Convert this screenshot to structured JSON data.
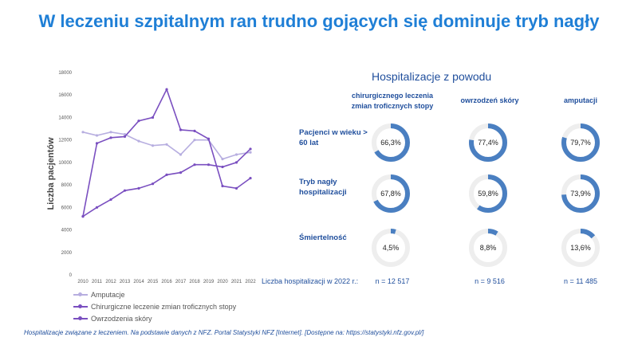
{
  "title": "W leczeniu szpitalnym ran trudno gojących się dominuje tryb nagły",
  "chart_data": {
    "type": "line",
    "ylabel": "Liczba pacjentów",
    "xlabel": "",
    "ylim": [
      0,
      18000
    ],
    "yticks": [
      0,
      2000,
      4000,
      6000,
      8000,
      10000,
      12000,
      14000,
      16000,
      18000
    ],
    "x": [
      "2010",
      "2011",
      "2012",
      "2013",
      "2014",
      "2015",
      "2016",
      "2017",
      "2018",
      "2019",
      "2020",
      "2021",
      "2022"
    ],
    "series": [
      {
        "name": "Amputacje",
        "color": "#b7aee0",
        "values": [
          12700,
          12400,
          12700,
          12500,
          11900,
          11500,
          11600,
          10700,
          12000,
          12000,
          10300,
          10700,
          10900
        ]
      },
      {
        "name": "Chirurgiczne leczenie zmian troficznych stopy",
        "color": "#7a4fc0",
        "values": [
          5200,
          11700,
          12200,
          12300,
          13700,
          14000,
          16500,
          12900,
          12800,
          12100,
          7900,
          7700,
          8600
        ]
      },
      {
        "name": "Owrzodzenia skóry",
        "color": "#7a4fc0",
        "values": [
          5200,
          6000,
          6700,
          7500,
          7700,
          8100,
          8900,
          9100,
          9800,
          9800,
          9600,
          10000,
          11200
        ]
      }
    ],
    "grid": false,
    "legend": "bottom"
  },
  "panel": {
    "title": "Hospitalizacje z powodu",
    "columns": [
      "chirurgicznego leczenia zmian troficznych stopy",
      "owrzodzeń skóry",
      "amputacji"
    ],
    "rows": [
      {
        "label": "Pacjenci w wieku > 60 lat",
        "values": [
          66.3,
          77.4,
          79.7
        ],
        "texts": [
          "66,3%",
          "77,4%",
          "79,7%"
        ]
      },
      {
        "label": "Tryb nagły hospitalizacji",
        "values": [
          67.8,
          59.8,
          73.9
        ],
        "texts": [
          "67,8%",
          "59,8%",
          "73,9%"
        ]
      },
      {
        "label": "Śmiertelność",
        "values": [
          4.5,
          8.8,
          13.6
        ],
        "texts": [
          "4,5%",
          "8,8%",
          "13,6%"
        ]
      }
    ],
    "count_label": "Liczba hospitalizacji w 2022 r.:",
    "counts": [
      "n = 12 517",
      "n = 9 516",
      "n = 11 485"
    ],
    "donut_color": "#4a7fc1",
    "donut_track": "#eeeeee"
  },
  "footnote": "Hospitalizacje związane z leczeniem. Na podstawie danych z NFZ. Portal Statystyki NFZ [Internet]. [Dostępne na: https://statystyki.nfz.gov.pl/]"
}
